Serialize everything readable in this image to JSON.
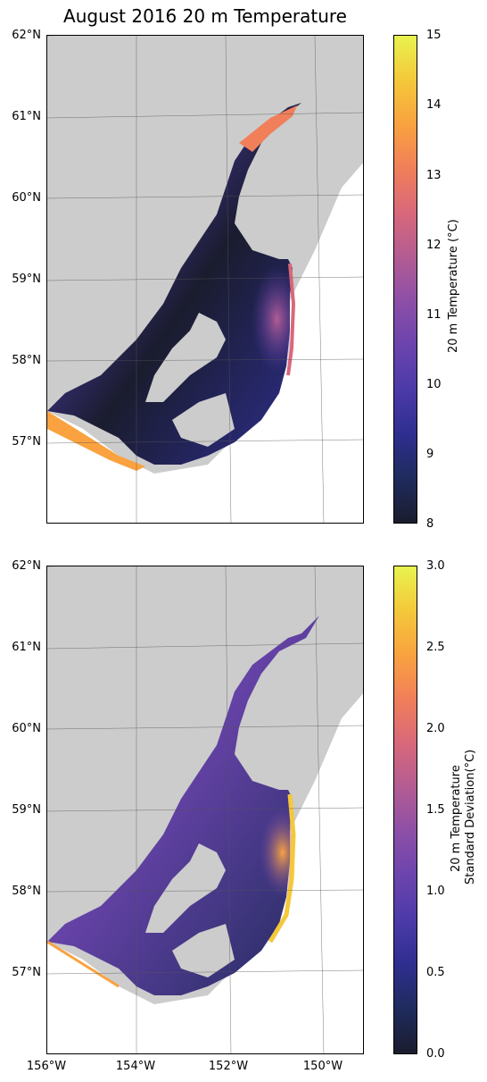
{
  "title": "August 2016 20 m Temperature",
  "lat_labels": [
    "62°N",
    "61°N",
    "60°N",
    "59°N",
    "58°N",
    "57°N"
  ],
  "lon_labels": [
    "156°W",
    "154°W",
    "152°W",
    "150°W"
  ],
  "colormap": [
    "#1a1c2e",
    "#1f2b5c",
    "#2e2e8f",
    "#4b3aa8",
    "#6b44ad",
    "#8c4fa7",
    "#b35c93",
    "#d8687a",
    "#f07f5a",
    "#f9a23f",
    "#f4c83a",
    "#e8f34f"
  ],
  "land_color": "#cccccc",
  "panels": [
    {
      "colorbar_label_1": "20 m Temperature (°C)",
      "colorbar_label_2": "",
      "ticks": [
        "15",
        "14",
        "13",
        "12",
        "11",
        "10",
        "9",
        "8"
      ],
      "range": [
        8,
        15
      ]
    },
    {
      "colorbar_label_1": "20 m Temperature",
      "colorbar_label_2": "Standard Deviation(°C)",
      "ticks": [
        "3.0",
        "2.5",
        "2.0",
        "1.5",
        "1.0",
        "0.5",
        "0.0"
      ],
      "range": [
        0,
        3
      ]
    }
  ]
}
